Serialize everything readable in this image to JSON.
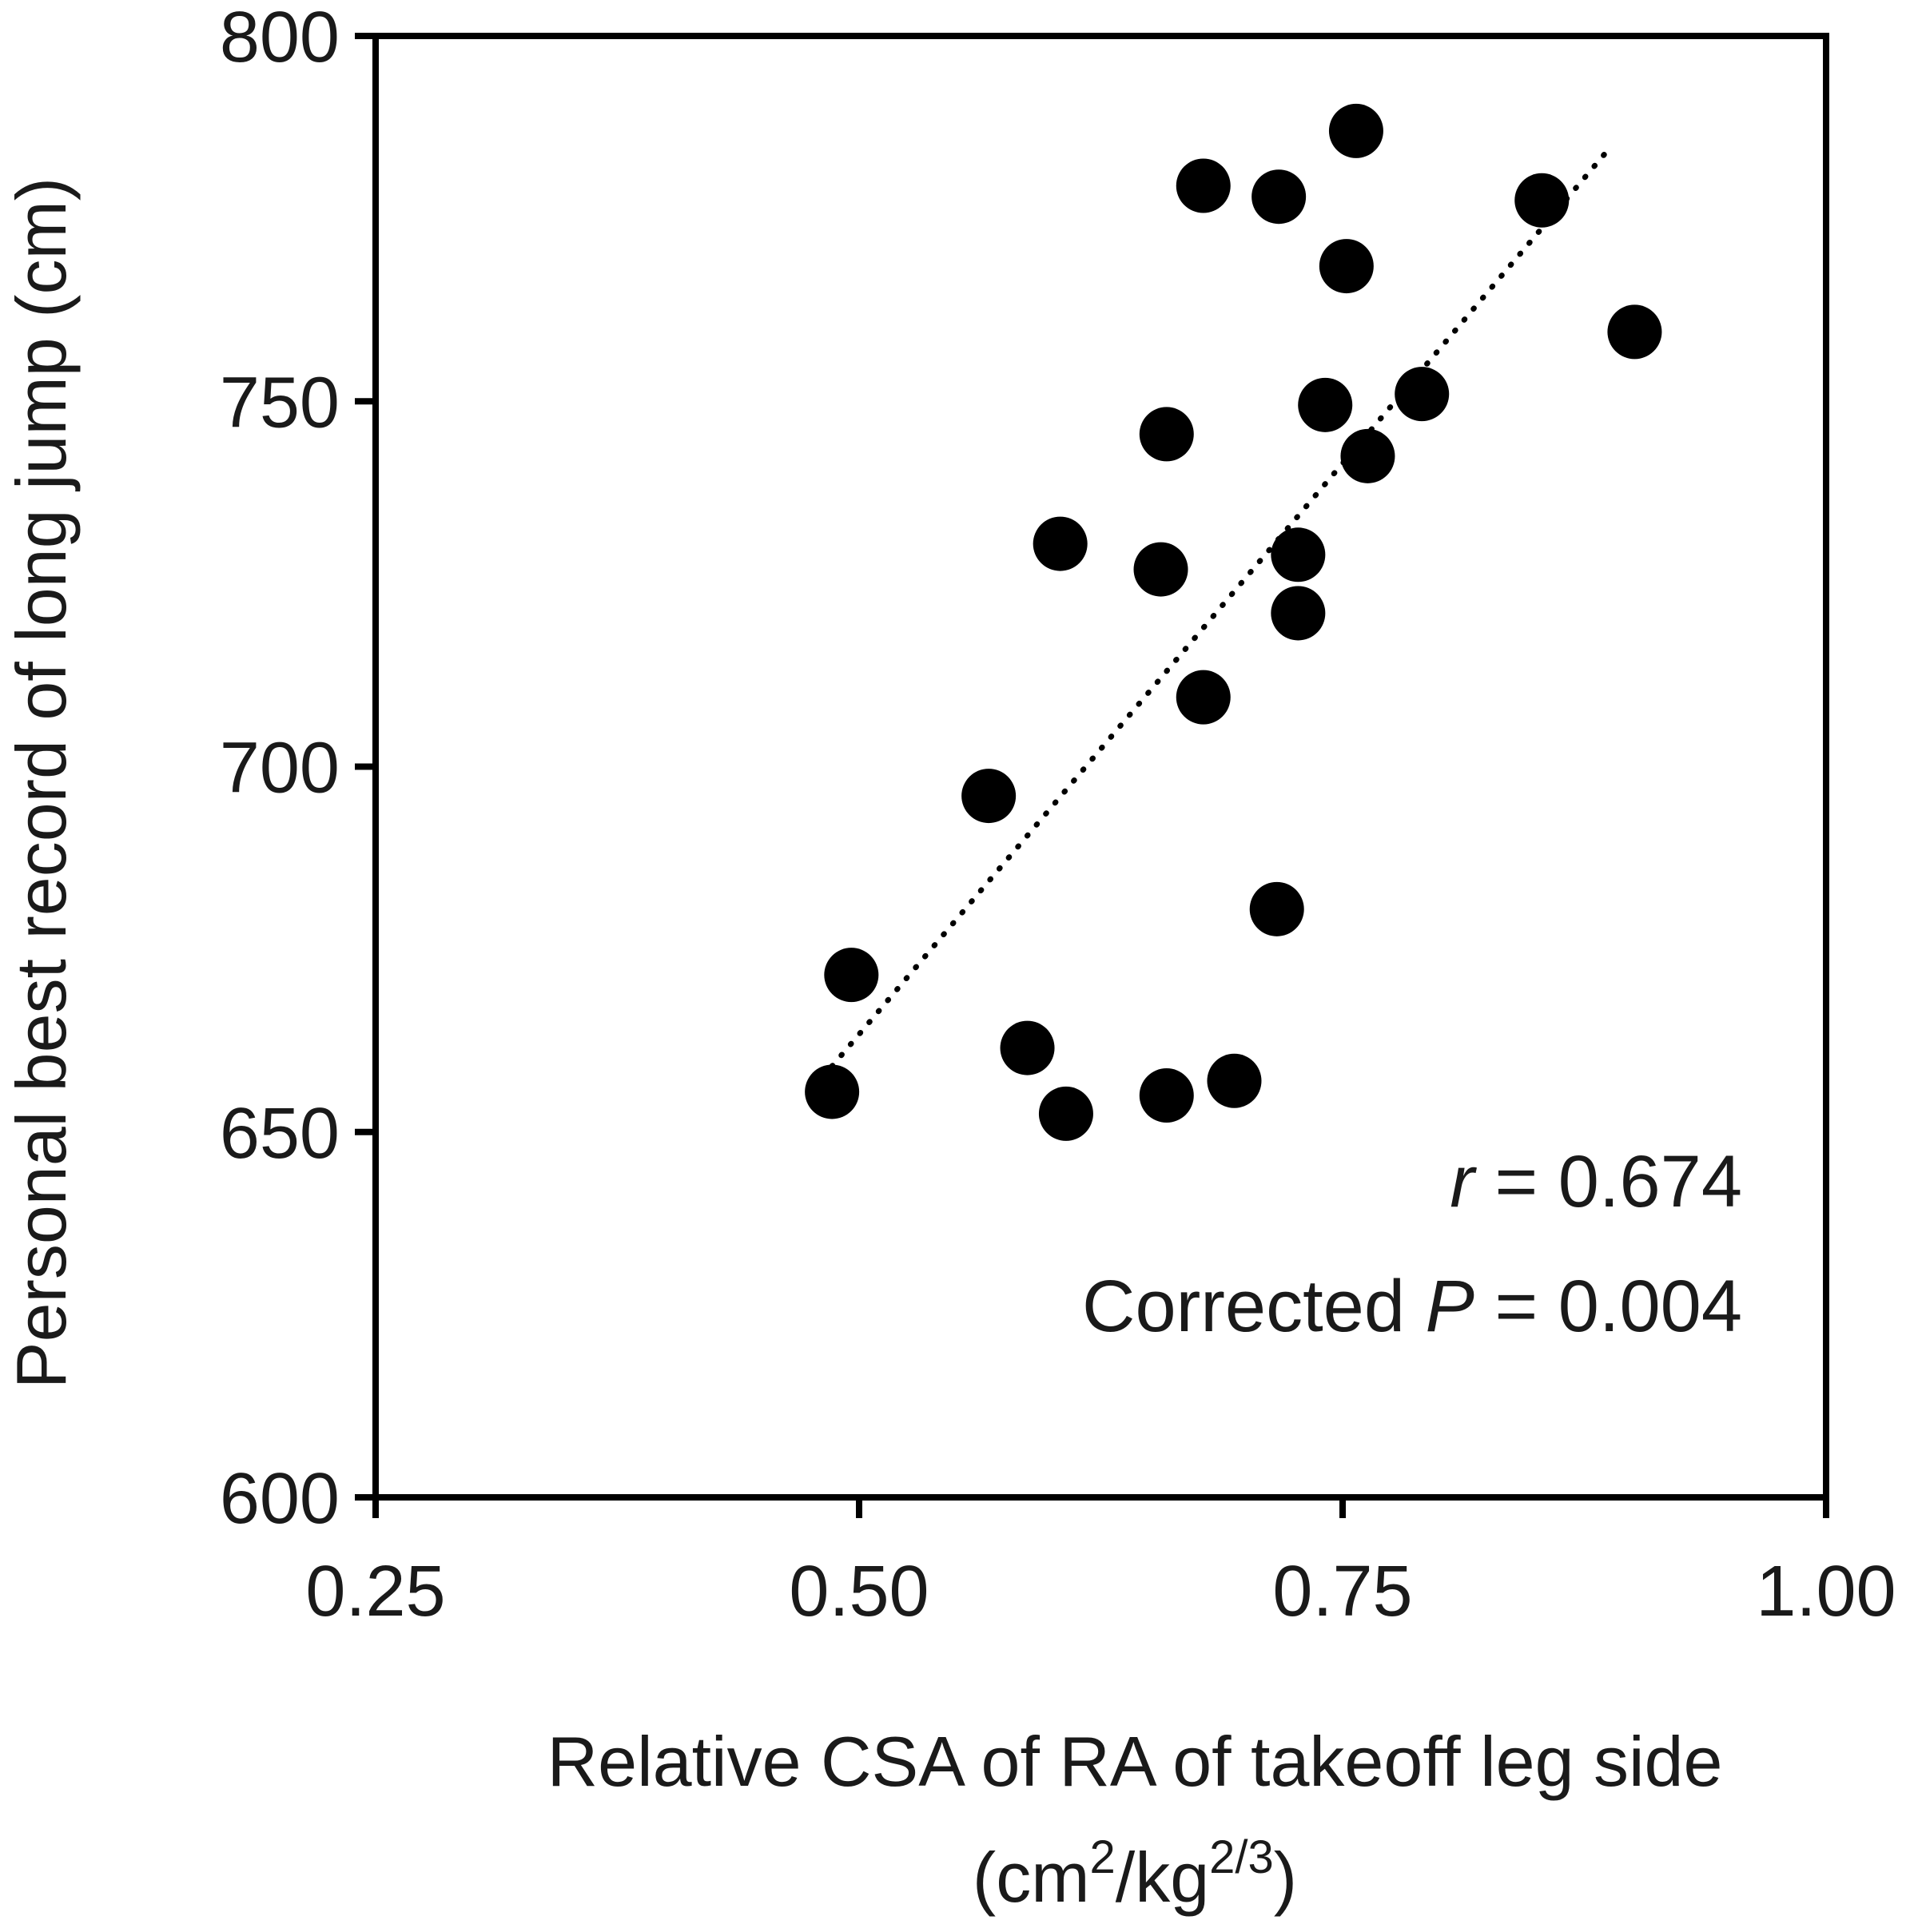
{
  "chart_data": {
    "type": "scatter",
    "xlabel": "Relative CSA of RA of takeoff leg side",
    "xunit": {
      "open": "(cm",
      "sup1": "2",
      "mid": "/kg",
      "sup2": "2/3",
      "close": ")"
    },
    "ylabel": "Personal best record of long jump (cm)",
    "xlim": [
      0.25,
      1.0
    ],
    "ylim": [
      600,
      800
    ],
    "xticks": [
      0.25,
      0.5,
      0.75,
      1.0
    ],
    "xtick_labels": [
      "0.25",
      "0.50",
      "0.75",
      "1.00"
    ],
    "yticks": [
      600,
      650,
      700,
      750,
      800
    ],
    "ytick_labels": [
      "600",
      "650",
      "700",
      "750",
      "800"
    ],
    "grid": false,
    "marker_color": "#000000",
    "points": [
      {
        "x": 0.486,
        "y": 655.5
      },
      {
        "x": 0.496,
        "y": 671.5
      },
      {
        "x": 0.567,
        "y": 696.0
      },
      {
        "x": 0.587,
        "y": 661.5
      },
      {
        "x": 0.607,
        "y": 652.5
      },
      {
        "x": 0.604,
        "y": 730.5
      },
      {
        "x": 0.656,
        "y": 727.0
      },
      {
        "x": 0.659,
        "y": 745.5
      },
      {
        "x": 0.659,
        "y": 655.0
      },
      {
        "x": 0.678,
        "y": 709.5
      },
      {
        "x": 0.678,
        "y": 779.5
      },
      {
        "x": 0.694,
        "y": 657.0
      },
      {
        "x": 0.716,
        "y": 680.5
      },
      {
        "x": 0.717,
        "y": 778.0
      },
      {
        "x": 0.727,
        "y": 729.0
      },
      {
        "x": 0.727,
        "y": 721.0
      },
      {
        "x": 0.741,
        "y": 749.5
      },
      {
        "x": 0.752,
        "y": 768.5
      },
      {
        "x": 0.757,
        "y": 787.0
      },
      {
        "x": 0.763,
        "y": 742.5
      },
      {
        "x": 0.791,
        "y": 751.0
      },
      {
        "x": 0.853,
        "y": 777.5
      },
      {
        "x": 0.901,
        "y": 759.5
      }
    ],
    "trendline": {
      "style": "dotted",
      "x": [
        0.486,
        0.886
      ],
      "y": [
        659.0,
        784.0
      ]
    },
    "annotations": {
      "r_symbol": "r",
      "r_value": " = 0.674",
      "p_prefix": "Corrected ",
      "p_symbol": "P",
      "p_value": " = 0.004"
    }
  }
}
